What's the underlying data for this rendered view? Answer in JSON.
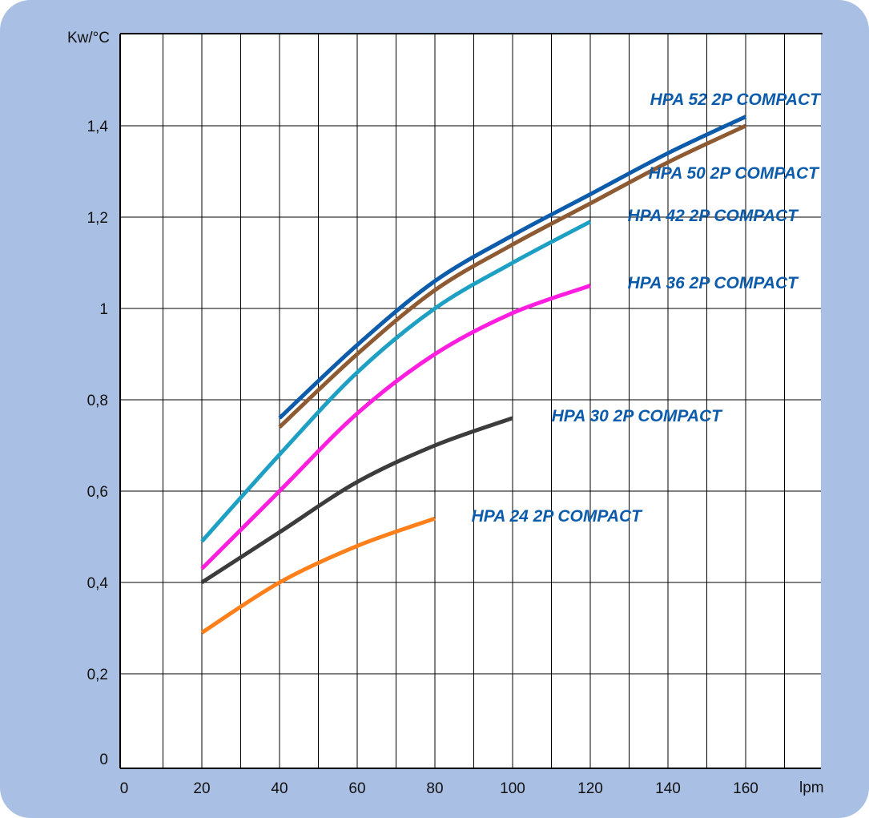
{
  "chart_data": {
    "type": "line",
    "ylabel": "Kw/°C",
    "xlabel": "lpm",
    "xlim": [
      0,
      180
    ],
    "ylim": [
      0,
      1.6
    ],
    "grid": true,
    "x_ticks": [
      0,
      20,
      40,
      60,
      80,
      100,
      120,
      140,
      160
    ],
    "x_tick_labels": [
      "0",
      "20",
      "40",
      "60",
      "80",
      "100",
      "120",
      "140",
      "160"
    ],
    "y_ticks": [
      0,
      0.2,
      0.4,
      0.6,
      0.8,
      1.0,
      1.2,
      1.4
    ],
    "y_tick_labels": [
      "0",
      "0,2",
      "0,4",
      "0,6",
      "0,8",
      "1",
      "1,2",
      "1,4"
    ],
    "series": [
      {
        "name": "HPA 52 2P COMPACT",
        "color": "#0c5cab",
        "label_color": "#0c5cab",
        "x": [
          40,
          60,
          80,
          100,
          120,
          140,
          160
        ],
        "y": [
          0.76,
          0.92,
          1.06,
          1.16,
          1.25,
          1.34,
          1.42
        ]
      },
      {
        "name": "HPA 50 2P COMPACT",
        "color": "#8e5a32",
        "label_color": "#0c5cab",
        "x": [
          40,
          60,
          80,
          100,
          120,
          140,
          160
        ],
        "y": [
          0.74,
          0.9,
          1.04,
          1.14,
          1.23,
          1.32,
          1.4
        ]
      },
      {
        "name": "HPA 42 2P COMPACT",
        "color": "#1ea0c4",
        "label_color": "#0c5cab",
        "x": [
          20,
          40,
          60,
          80,
          100,
          120
        ],
        "y": [
          0.49,
          0.68,
          0.86,
          1.0,
          1.1,
          1.19
        ]
      },
      {
        "name": "HPA 36 2P COMPACT",
        "color": "#ff1ee0",
        "label_color": "#0c5cab",
        "x": [
          20,
          40,
          60,
          80,
          100,
          120
        ],
        "y": [
          0.43,
          0.6,
          0.77,
          0.9,
          0.99,
          1.05
        ]
      },
      {
        "name": "HPA 30 2P COMPACT",
        "color": "#3c3c3c",
        "label_color": "#0c5cab",
        "x": [
          20,
          40,
          60,
          80,
          100
        ],
        "y": [
          0.4,
          0.51,
          0.62,
          0.7,
          0.76
        ]
      },
      {
        "name": "HPA 24 2P COMPACT",
        "color": "#ff7f1a",
        "label_color": "#0c5cab",
        "x": [
          20,
          40,
          60,
          80
        ],
        "y": [
          0.29,
          0.4,
          0.48,
          0.54
        ]
      }
    ]
  }
}
